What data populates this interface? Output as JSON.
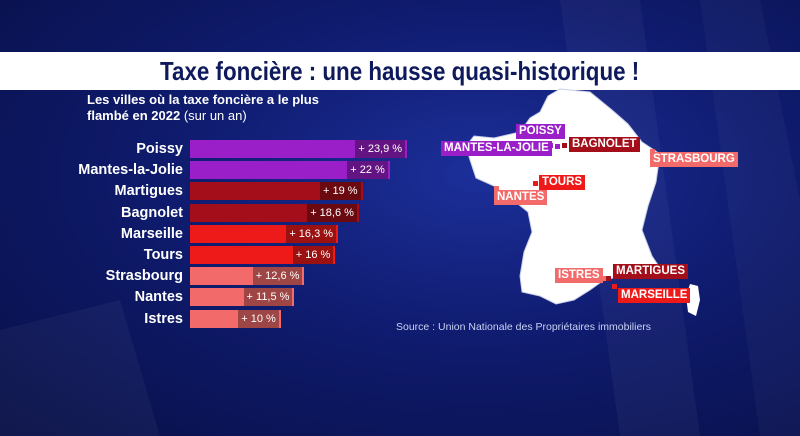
{
  "header": {
    "title": "Taxe foncière : une hausse quasi-historique !"
  },
  "subtitle": {
    "line1": "Les villes où la taxe foncière a le plus",
    "line2_bold": "flambé en 2022",
    "line2_light": " (sur un an)"
  },
  "chart_data": {
    "type": "bar",
    "orientation": "horizontal",
    "categories": [
      "Poissy",
      "Mantes-la-Jolie",
      "Martigues",
      "Bagnolet",
      "Marseille",
      "Tours",
      "Strasbourg",
      "Nantes",
      "Istres"
    ],
    "values": [
      23.9,
      22,
      19,
      18.6,
      16.3,
      16,
      12.6,
      11.5,
      10
    ],
    "value_labels": [
      "+ 23,9 %",
      "+ 22 %",
      "+ 19 %",
      "+ 18,6 %",
      "+ 16,3 %",
      "+ 16 %",
      "+ 12,6 %",
      "+ 11,5 %",
      "+ 10 %"
    ],
    "colors": [
      "#9a1fc8",
      "#9a1fc8",
      "#a30e1a",
      "#a30e1a",
      "#ee1a1a",
      "#ee1a1a",
      "#f36a6a",
      "#f36a6a",
      "#f36a6a"
    ],
    "xlim": [
      0,
      24
    ]
  },
  "map": {
    "cities": [
      {
        "name": "POISSY",
        "color": "#9a1fc8"
      },
      {
        "name": "MANTES-LA-JOLIE",
        "color": "#9a1fc8"
      },
      {
        "name": "BAGNOLET",
        "color": "#a30e1a"
      },
      {
        "name": "STRASBOURG",
        "color": "#f36a6a"
      },
      {
        "name": "TOURS",
        "color": "#ee1a1a"
      },
      {
        "name": "NANTES",
        "color": "#f36a6a"
      },
      {
        "name": "ISTRES",
        "color": "#f36a6a"
      },
      {
        "name": "MARTIGUES",
        "color": "#a30e1a"
      },
      {
        "name": "MARSEILLE",
        "color": "#ee1a1a"
      }
    ]
  },
  "source": "Source : Union Nationale des Propriétaires immobiliers"
}
